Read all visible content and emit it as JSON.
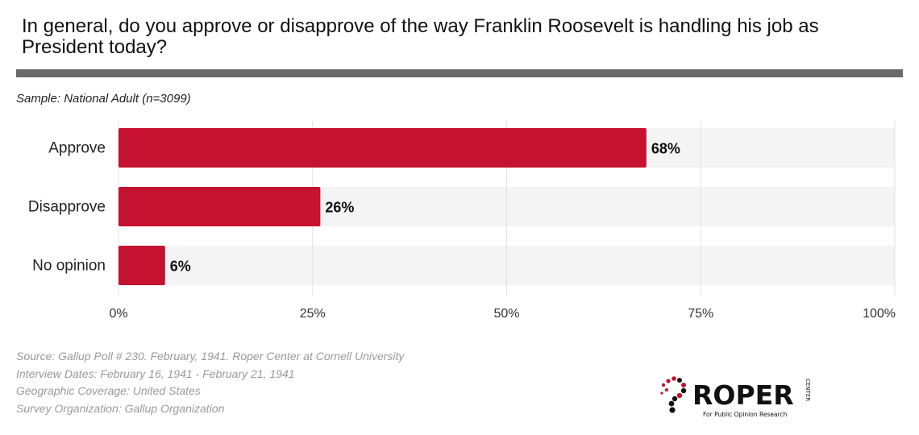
{
  "question": "In general, do you approve or disapprove of the way Franklin Roosevelt is handling his job as President today?",
  "sample": "Sample: National Adult (n=3099)",
  "colors": {
    "bar": "#c41230",
    "track": "#f4f4f4",
    "grid": "#e2e2e2",
    "rule": "#6b6b6b"
  },
  "chart_data": {
    "type": "bar",
    "orientation": "horizontal",
    "categories": [
      "Approve",
      "Disapprove",
      "No opinion"
    ],
    "values": [
      68,
      26,
      6
    ],
    "value_labels": [
      "68%",
      "26%",
      "6%"
    ],
    "xlim": [
      0,
      100
    ],
    "ticks": [
      0,
      25,
      50,
      75,
      100
    ],
    "tick_labels": [
      "0%",
      "25%",
      "50%",
      "75%",
      "100%"
    ],
    "grid": true
  },
  "notes": [
    "Source: Gallup Poll # 230. February, 1941. Roper Center at Cornell University",
    "Interview Dates: February 16, 1941 - February 21, 1941",
    "Geographic Coverage: United States",
    "Survey Organization: Gallup Organization"
  ],
  "logo": {
    "name": "ROPER",
    "vertical_text": "CENTER",
    "tagline": "For Public Opinion Research",
    "accent": "#c41230"
  }
}
